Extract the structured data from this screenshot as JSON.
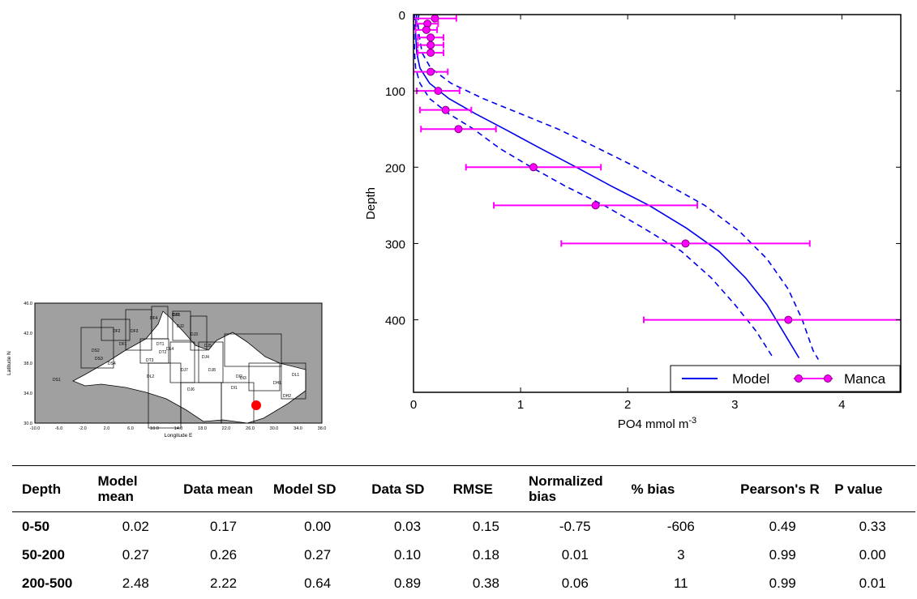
{
  "map": {
    "ylabel": "Latitude N",
    "xlabel": "Longitude E",
    "lat_ticks": [
      "46.0",
      "42.0",
      "38.0",
      "34.0",
      "30.0"
    ],
    "lon_ticks": [
      "-10.0",
      "-6.0",
      "-2.0",
      "2.0",
      "6.0",
      "10.0",
      "14.0",
      "18.0",
      "22.0",
      "26.0",
      "30.0",
      "34.0",
      "38.0"
    ],
    "boxes": [
      "DS1",
      "DS2",
      "DS3",
      "DS4",
      "DF1",
      "DF2",
      "DF3",
      "DF4",
      "DT1",
      "DT2",
      "DT3",
      "DJ1",
      "DJ2",
      "DJ3",
      "DJ4",
      "DJ5",
      "DJ6",
      "DJ7",
      "DJ8",
      "DI1",
      "DI2",
      "DI3",
      "DH1",
      "DH2",
      "DL1",
      "DL2",
      "DL4",
      "DF5"
    ],
    "colors": {
      "land": "#a0a0a0",
      "sea": "#ffffff",
      "marker": "#ff0000"
    }
  },
  "chart_data": {
    "type": "line",
    "xlabel": "PO4 mmol m",
    "xlabel_sup": "-3",
    "ylabel": "Depth",
    "xlim": [
      0,
      4.55
    ],
    "ylim": [
      495,
      0
    ],
    "x_ticks": [
      0,
      1,
      2,
      3,
      4
    ],
    "y_ticks": [
      0,
      100,
      200,
      300,
      400
    ],
    "legend_position": "bottom-right",
    "series": [
      {
        "name": "Model",
        "style": "solid",
        "color": "#0000ee",
        "points": [
          [
            0.03,
            0
          ],
          [
            0.02,
            10
          ],
          [
            0.02,
            25
          ],
          [
            0.03,
            50
          ],
          [
            0.06,
            70
          ],
          [
            0.15,
            90
          ],
          [
            0.33,
            110
          ],
          [
            0.58,
            130
          ],
          [
            0.85,
            150
          ],
          [
            1.18,
            175
          ],
          [
            1.52,
            200
          ],
          [
            1.85,
            225
          ],
          [
            2.2,
            250
          ],
          [
            2.55,
            280
          ],
          [
            2.85,
            310
          ],
          [
            3.1,
            345
          ],
          [
            3.3,
            380
          ],
          [
            3.45,
            415
          ],
          [
            3.6,
            450
          ]
        ]
      },
      {
        "style": "dashed",
        "color": "#0000ee",
        "points": [
          [
            0.05,
            0
          ],
          [
            0.04,
            10
          ],
          [
            0.05,
            25
          ],
          [
            0.08,
            50
          ],
          [
            0.16,
            70
          ],
          [
            0.35,
            90
          ],
          [
            0.65,
            110
          ],
          [
            1.0,
            130
          ],
          [
            1.35,
            150
          ],
          [
            1.72,
            175
          ],
          [
            2.08,
            200
          ],
          [
            2.4,
            225
          ],
          [
            2.72,
            250
          ],
          [
            3.05,
            285
          ],
          [
            3.3,
            320
          ],
          [
            3.5,
            360
          ],
          [
            3.63,
            400
          ],
          [
            3.73,
            440
          ],
          [
            3.78,
            452
          ]
        ]
      },
      {
        "style": "dashed",
        "color": "#0000ee",
        "points": [
          [
            0.01,
            0
          ],
          [
            0.005,
            25
          ],
          [
            0.01,
            50
          ],
          [
            0.02,
            70
          ],
          [
            0.06,
            90
          ],
          [
            0.15,
            110
          ],
          [
            0.33,
            130
          ],
          [
            0.56,
            150
          ],
          [
            0.8,
            175
          ],
          [
            1.1,
            200
          ],
          [
            1.42,
            225
          ],
          [
            1.78,
            250
          ],
          [
            2.15,
            280
          ],
          [
            2.5,
            310
          ],
          [
            2.78,
            345
          ],
          [
            3.0,
            380
          ],
          [
            3.2,
            415
          ],
          [
            3.35,
            448
          ]
        ]
      },
      {
        "name": "Manca",
        "type": "errorbar",
        "color": "#ff00ff",
        "points": [
          {
            "x": 0.2,
            "y": 5,
            "xerr": 0.2
          },
          {
            "x": 0.13,
            "y": 12,
            "xerr": 0.1
          },
          {
            "x": 0.12,
            "y": 20,
            "xerr": 0.1
          },
          {
            "x": 0.16,
            "y": 30,
            "xerr": 0.12
          },
          {
            "x": 0.16,
            "y": 40,
            "xerr": 0.12
          },
          {
            "x": 0.16,
            "y": 50,
            "xerr": 0.12
          },
          {
            "x": 0.16,
            "y": 75,
            "xerr": 0.16
          },
          {
            "x": 0.23,
            "y": 100,
            "xerr": 0.2
          },
          {
            "x": 0.3,
            "y": 125,
            "xerr": 0.24
          },
          {
            "x": 0.42,
            "y": 150,
            "xerr": 0.35
          },
          {
            "x": 1.12,
            "y": 200,
            "xerr": 0.63
          },
          {
            "x": 1.7,
            "y": 250,
            "xerr": 0.95
          },
          {
            "x": 2.54,
            "y": 300,
            "xerr": 1.16
          },
          {
            "x": 3.5,
            "y": 400,
            "xerr": 1.35
          }
        ]
      }
    ]
  },
  "table": {
    "headers": [
      "Depth",
      "Model mean",
      "Data mean",
      "Model SD",
      "Data SD",
      "RMSE",
      "Normalized bias",
      "% bias",
      "Pearson's R",
      "P value"
    ],
    "rows": [
      [
        "0-50",
        "0.02",
        "0.17",
        "0.00",
        "0.03",
        "0.15",
        "-0.75",
        "-606",
        "0.49",
        "0.33"
      ],
      [
        "50-200",
        "0.27",
        "0.26",
        "0.27",
        "0.10",
        "0.18",
        "0.01",
        "3",
        "0.99",
        "0.00"
      ],
      [
        "200-500",
        "2.48",
        "2.22",
        "0.64",
        "0.89",
        "0.38",
        "0.06",
        "11",
        "0.99",
        "0.01"
      ]
    ]
  }
}
